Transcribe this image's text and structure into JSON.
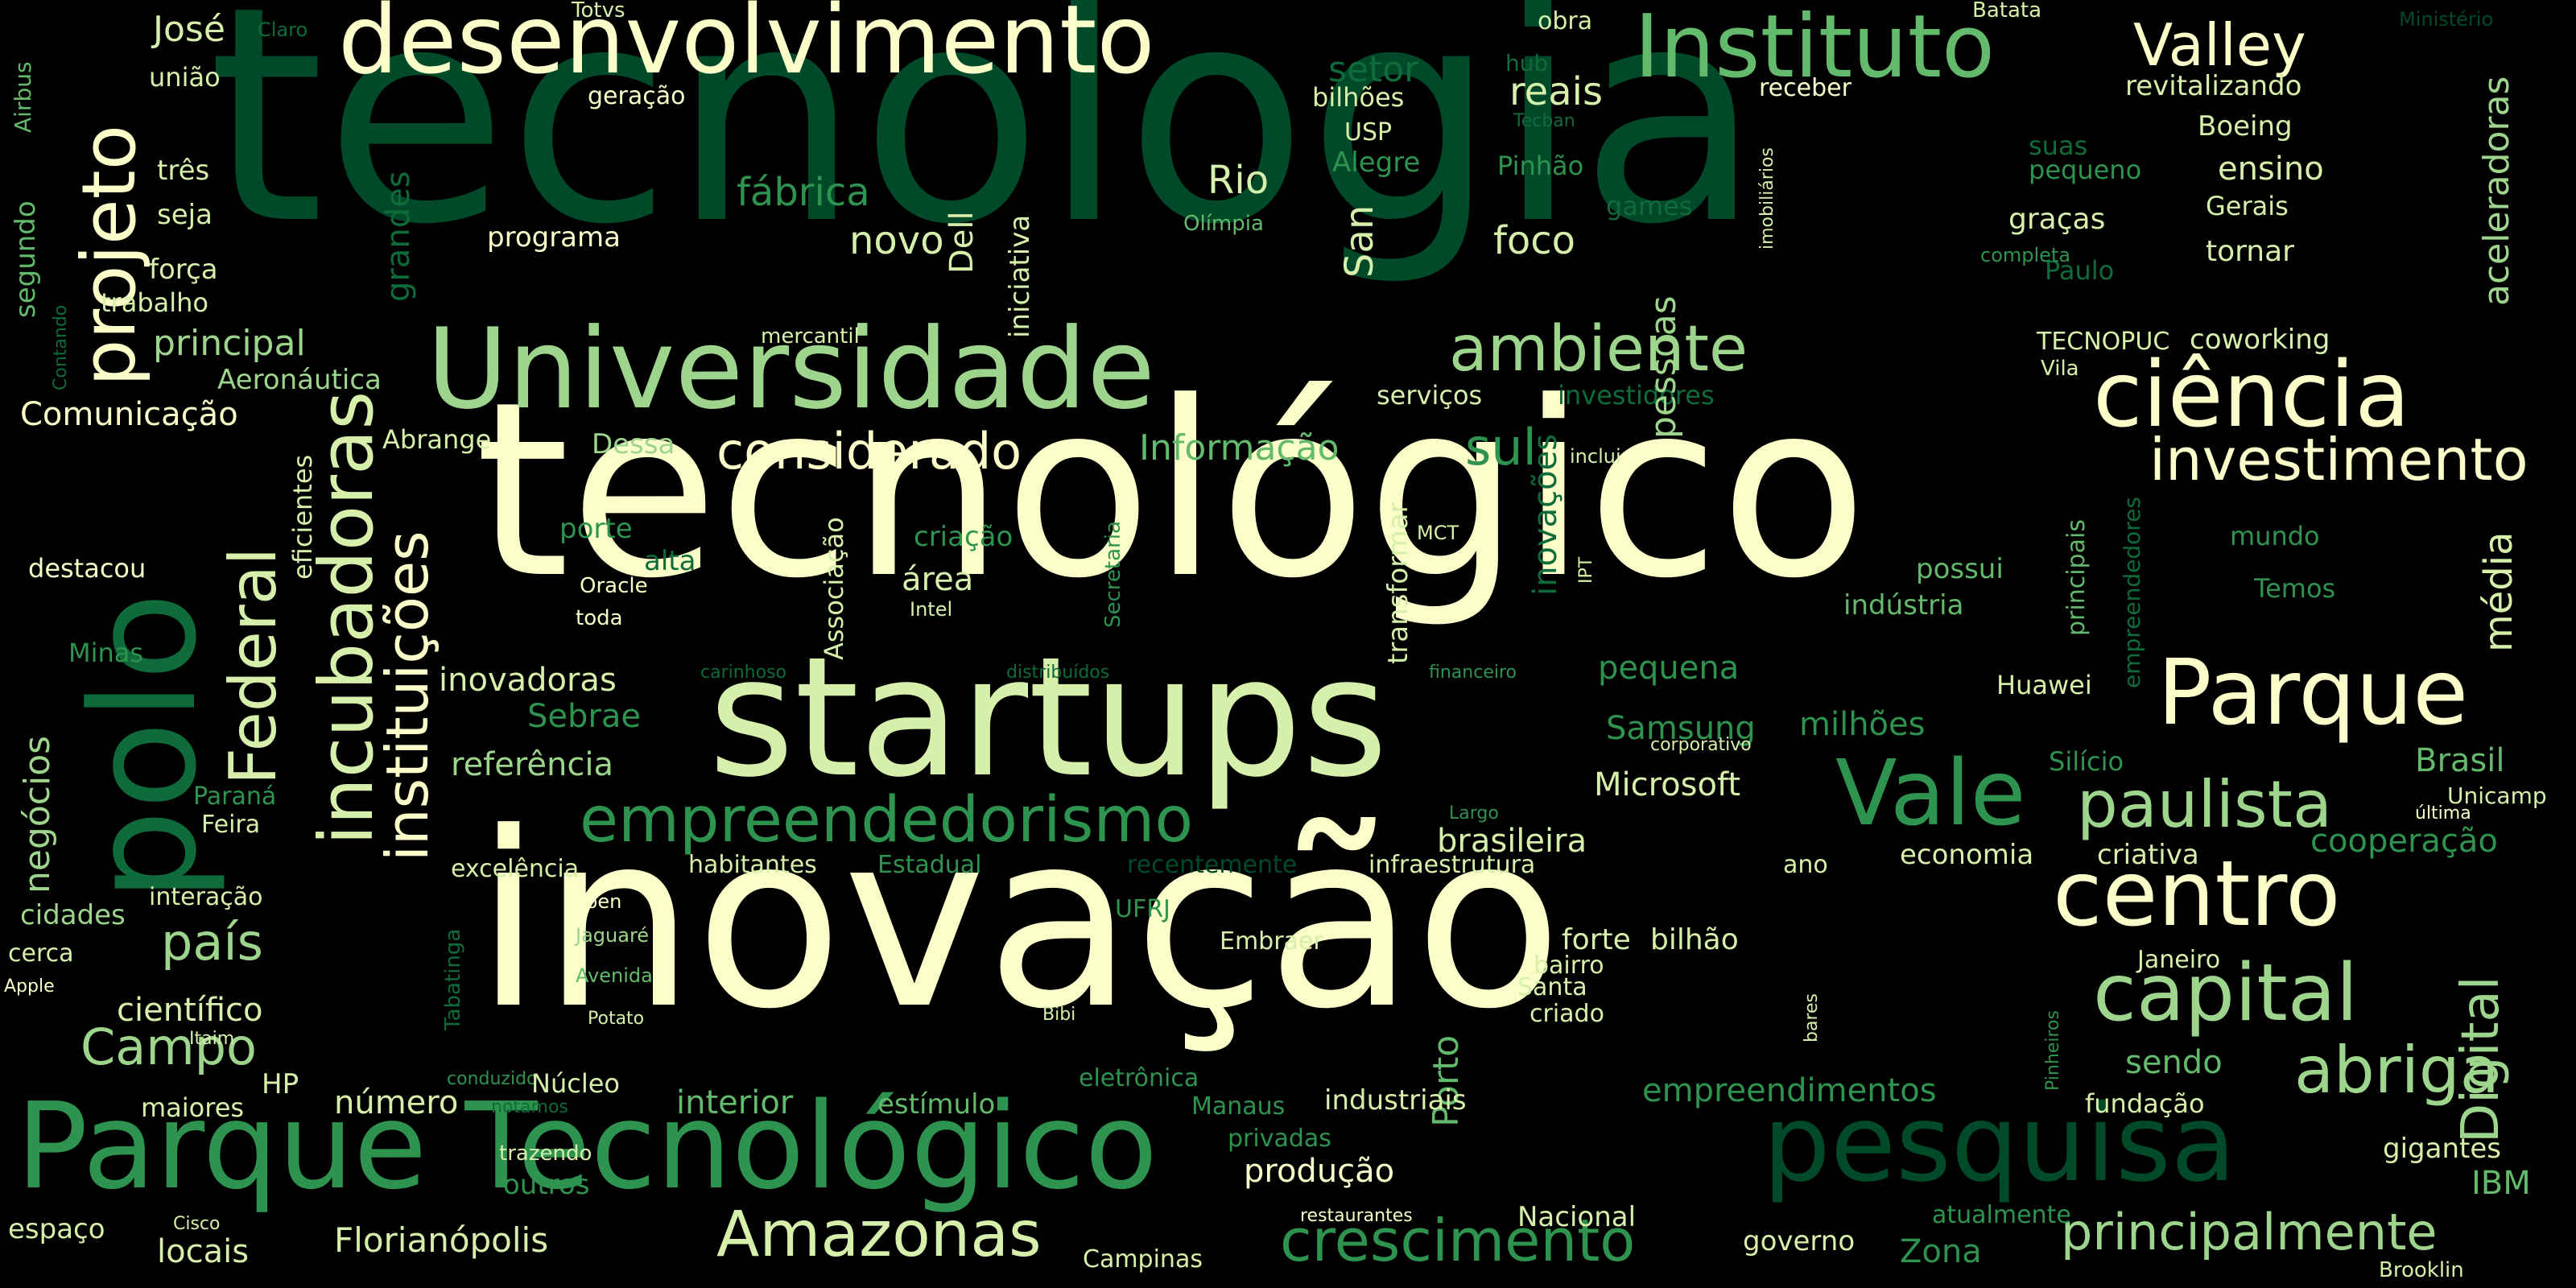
{
  "background": "#000000",
  "palette": [
    "#fbfec8",
    "#d6efaa",
    "#9ed58d",
    "#63b96c",
    "#2f9350",
    "#0f6b3a",
    "#004a2a"
  ],
  "words": [
    {
      "text": "tecnologia"
    },
    {
      "text": "tecnológico"
    },
    {
      "text": "inovação"
    },
    {
      "text": "startups"
    },
    {
      "text": "Parque Tecnológico"
    },
    {
      "text": "Universidade"
    },
    {
      "text": "desenvolvimento"
    },
    {
      "text": "Instituto"
    },
    {
      "text": "Valley"
    },
    {
      "text": "ciência"
    },
    {
      "text": "investimento"
    },
    {
      "text": "Parque"
    },
    {
      "text": "polo"
    },
    {
      "text": "projeto"
    },
    {
      "text": "incubadoras"
    },
    {
      "text": "instituições"
    },
    {
      "text": "Federal"
    },
    {
      "text": "ambiente"
    },
    {
      "text": "considerado"
    },
    {
      "text": "empreendedorismo"
    },
    {
      "text": "Vale"
    },
    {
      "text": "paulista"
    },
    {
      "text": "centro"
    },
    {
      "text": "capital"
    },
    {
      "text": "pesquisa"
    },
    {
      "text": "abriga"
    },
    {
      "text": "Digital"
    },
    {
      "text": "Amazonas"
    },
    {
      "text": "crescimento"
    },
    {
      "text": "principalmente"
    },
    {
      "text": "país"
    },
    {
      "text": "Campo"
    },
    {
      "text": "sul"
    },
    {
      "text": "José"
    },
    {
      "text": "Rio"
    },
    {
      "text": "fábrica"
    },
    {
      "text": "novo"
    },
    {
      "text": "foco"
    },
    {
      "text": "San"
    },
    {
      "text": "Dell"
    },
    {
      "text": "iniciativa"
    },
    {
      "text": "setor"
    },
    {
      "text": "reais"
    },
    {
      "text": "hub"
    },
    {
      "text": "bilhões"
    },
    {
      "text": "USP"
    },
    {
      "text": "Alegre"
    },
    {
      "text": "Pinhão"
    },
    {
      "text": "games"
    },
    {
      "text": "obra"
    },
    {
      "text": "receber"
    },
    {
      "text": "revitalizando"
    },
    {
      "text": "Boeing"
    },
    {
      "text": "ensino"
    },
    {
      "text": "suas"
    },
    {
      "text": "pequeno"
    },
    {
      "text": "graças"
    },
    {
      "text": "Gerais"
    },
    {
      "text": "tornar"
    },
    {
      "text": "aceleradoras"
    },
    {
      "text": "Paulo"
    },
    {
      "text": "completa"
    },
    {
      "text": "imobiliários"
    },
    {
      "text": "Batata"
    },
    {
      "text": "Ministério"
    },
    {
      "text": "Totvs"
    },
    {
      "text": "Claro"
    },
    {
      "text": "Airbus"
    },
    {
      "text": "união"
    },
    {
      "text": "geração"
    },
    {
      "text": "três"
    },
    {
      "text": "seja"
    },
    {
      "text": "força"
    },
    {
      "text": "trabalho"
    },
    {
      "text": "segundo"
    },
    {
      "text": "Contando"
    },
    {
      "text": "principal"
    },
    {
      "text": "Aeronáutica"
    },
    {
      "text": "Comunicação"
    },
    {
      "text": "grandes"
    },
    {
      "text": "programa"
    },
    {
      "text": "Olímpia"
    },
    {
      "text": "Tecban"
    },
    {
      "text": "mercantil"
    },
    {
      "text": "serviços"
    },
    {
      "text": "investidores"
    },
    {
      "text": "pessoas"
    },
    {
      "text": "TECNOPUC"
    },
    {
      "text": "coworking"
    },
    {
      "text": "Vila"
    },
    {
      "text": "Abrange"
    },
    {
      "text": "Dessa"
    },
    {
      "text": "Informação"
    },
    {
      "text": "inovações"
    },
    {
      "text": "inclui"
    },
    {
      "text": "destacou"
    },
    {
      "text": "eficientes"
    },
    {
      "text": "porte"
    },
    {
      "text": "alta"
    },
    {
      "text": "Oracle"
    },
    {
      "text": "toda"
    },
    {
      "text": "Associação"
    },
    {
      "text": "criação"
    },
    {
      "text": "área"
    },
    {
      "text": "Intel"
    },
    {
      "text": "Secretaria"
    },
    {
      "text": "transformar"
    },
    {
      "text": "MCT"
    },
    {
      "text": "IPT"
    },
    {
      "text": "possui"
    },
    {
      "text": "indústria"
    },
    {
      "text": "principais"
    },
    {
      "text": "empreendedores"
    },
    {
      "text": "mundo"
    },
    {
      "text": "Temos"
    },
    {
      "text": "média"
    },
    {
      "text": "Minas"
    },
    {
      "text": "inovadoras"
    },
    {
      "text": "carinhoso"
    },
    {
      "text": "distribuídos"
    },
    {
      "text": "financeiro"
    },
    {
      "text": "pequena"
    },
    {
      "text": "Huawei"
    },
    {
      "text": "Sebrae"
    },
    {
      "text": "Samsung"
    },
    {
      "text": "milhões"
    },
    {
      "text": "referência"
    },
    {
      "text": "corporativo"
    },
    {
      "text": "Silício"
    },
    {
      "text": "Brasil"
    },
    {
      "text": "Microsoft"
    },
    {
      "text": "Unicamp"
    },
    {
      "text": "Paraná"
    },
    {
      "text": "negócios"
    },
    {
      "text": "Feira"
    },
    {
      "text": "Largo"
    },
    {
      "text": "última"
    },
    {
      "text": "brasileira"
    },
    {
      "text": "cooperação"
    },
    {
      "text": "excelência"
    },
    {
      "text": "habitantes"
    },
    {
      "text": "Estadual"
    },
    {
      "text": "recentemente"
    },
    {
      "text": "infraestrutura"
    },
    {
      "text": "ano"
    },
    {
      "text": "economia"
    },
    {
      "text": "criativa"
    },
    {
      "text": "cidades"
    },
    {
      "text": "interação"
    },
    {
      "text": "Ipen"
    },
    {
      "text": "cerca"
    },
    {
      "text": "Apple"
    },
    {
      "text": "científico"
    },
    {
      "text": "Jaguaré"
    },
    {
      "text": "Avenida"
    },
    {
      "text": "Tabatinga"
    },
    {
      "text": "UFRJ"
    },
    {
      "text": "Embraer"
    },
    {
      "text": "forte"
    },
    {
      "text": "bilhão"
    },
    {
      "text": "bairro"
    },
    {
      "text": "Santa"
    },
    {
      "text": "criado"
    },
    {
      "text": "Janeiro"
    },
    {
      "text": "Itaim"
    },
    {
      "text": "Potato"
    },
    {
      "text": "Bibi"
    },
    {
      "text": "Porto"
    },
    {
      "text": "bares"
    },
    {
      "text": "Pinheiros"
    },
    {
      "text": "HP"
    },
    {
      "text": "conduzido"
    },
    {
      "text": "Núcleo"
    },
    {
      "text": "eletrônica"
    },
    {
      "text": "maiores"
    },
    {
      "text": "notamos"
    },
    {
      "text": "número"
    },
    {
      "text": "interior"
    },
    {
      "text": "estímulo"
    },
    {
      "text": "Manaus"
    },
    {
      "text": "industriais"
    },
    {
      "text": "empreendimentos"
    },
    {
      "text": "sendo"
    },
    {
      "text": "fundação"
    },
    {
      "text": "trazendo"
    },
    {
      "text": "outros"
    },
    {
      "text": "privadas"
    },
    {
      "text": "produção"
    },
    {
      "text": "gigantes"
    },
    {
      "text": "IBM"
    },
    {
      "text": "espaço"
    },
    {
      "text": "Cisco"
    },
    {
      "text": "locais"
    },
    {
      "text": "Florianópolis"
    },
    {
      "text": "restaurantes"
    },
    {
      "text": "Campinas"
    },
    {
      "text": "Nacional"
    },
    {
      "text": "governo"
    },
    {
      "text": "Zona"
    },
    {
      "text": "atualmente"
    },
    {
      "text": "Brooklin"
    }
  ]
}
